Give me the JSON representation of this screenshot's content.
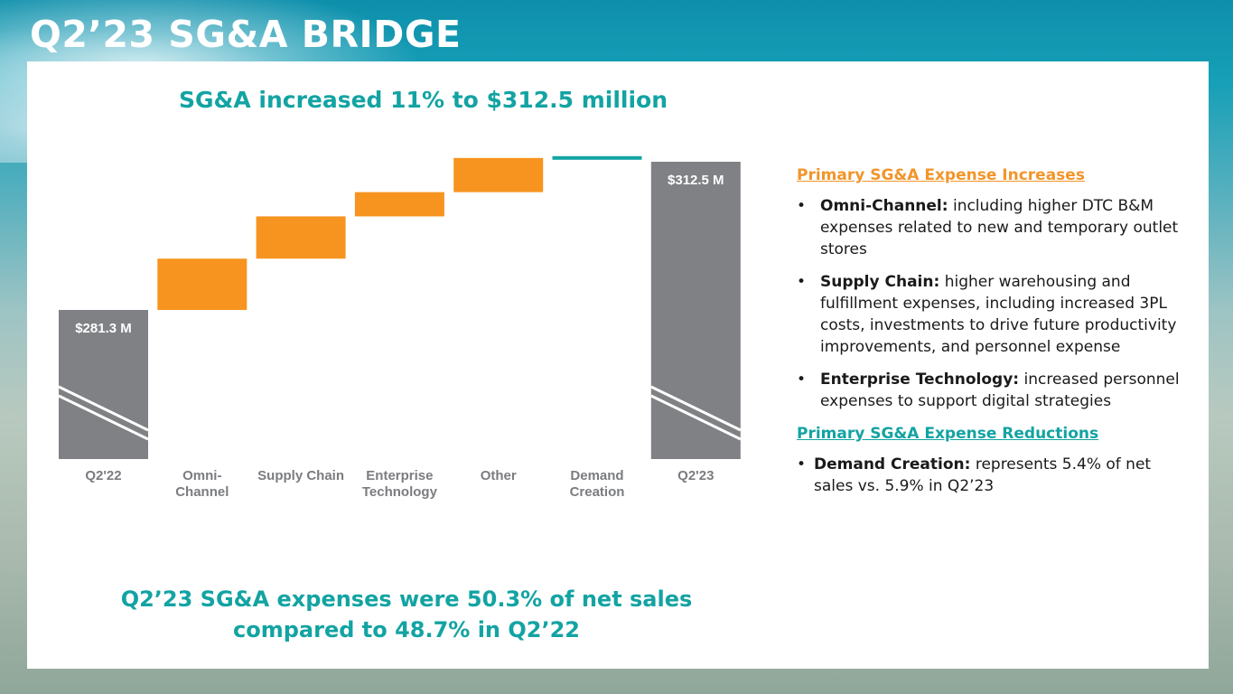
{
  "slide": {
    "title": "Q2’23 SG&A BRIDGE",
    "headline": "SG&A increased 11% to $312.5 million",
    "footer_line1": "Q2’23 SG&A expenses were 50.3% of net sales",
    "footer_line2": "compared to 48.7% in Q2’22"
  },
  "colors": {
    "total_bar": "#808185",
    "increase_bar": "#f7941f",
    "decrease_bar": "#13a3a3",
    "accent_teal": "#13a3a3",
    "accent_orange": "#f2952a"
  },
  "chart_data": {
    "type": "bar",
    "subtype": "waterfall",
    "title": "SG&A increased 11% to $312.5 million",
    "xlabel": "",
    "ylabel": "",
    "unit": "$M",
    "axis_broken": true,
    "categories": [
      "Q2'22",
      "Omni-\nChannel",
      "Supply Chain",
      "Enterprise\nTechnology",
      "Other",
      "Demand\nCreation",
      "Q2'23"
    ],
    "kinds": [
      "total",
      "increase",
      "increase",
      "increase",
      "increase",
      "decrease",
      "total"
    ],
    "values": [
      281.3,
      10.8,
      8.9,
      5.1,
      7.2,
      -0.8,
      312.5
    ],
    "data_labels": [
      "$281.3 M",
      "",
      "",
      "",
      "",
      "",
      "$312.5 M"
    ],
    "ylim": [
      250,
      320
    ],
    "grid": false,
    "legend": "none"
  },
  "right_panel": {
    "increases_heading": "Primary SG&A Expense Increases",
    "increases": [
      {
        "bold": "Omni-Channel:",
        "text": " including higher DTC B&M expenses related to new and temporary outlet stores"
      },
      {
        "bold": "Supply Chain:",
        "text": " higher warehousing and fulfillment expenses, including increased 3PL costs, investments to drive future productivity improvements, and personnel expense"
      },
      {
        "bold": "Enterprise Technology:",
        "text": " increased personnel expenses to support digital strategies"
      }
    ],
    "reductions_heading": "Primary SG&A Expense Reductions",
    "reductions": [
      {
        "bold": "Demand Creation:",
        "text": "  represents 5.4% of net sales vs. 5.9% in Q2’23"
      }
    ],
    "bullet_char": "•"
  }
}
